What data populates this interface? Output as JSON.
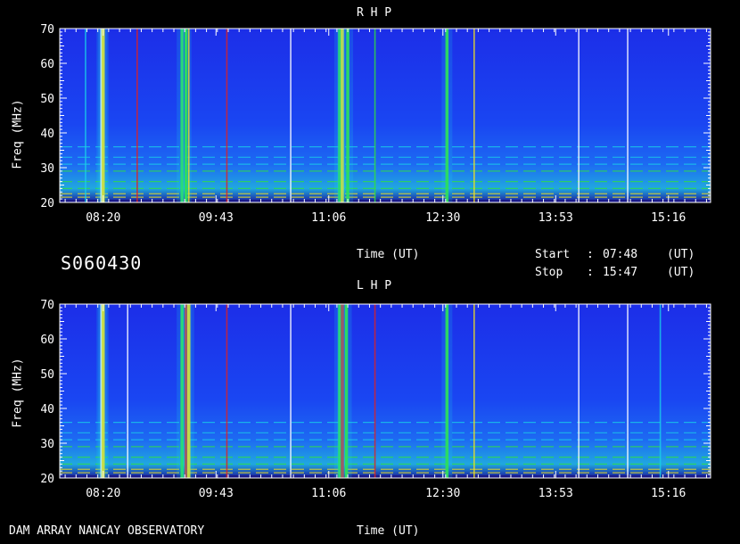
{
  "colors": {
    "background": "#000000",
    "axis": "#ffffff",
    "spectrogram_base": "#1a3cf0",
    "spectrogram_low": "#1c1c9c",
    "emission_cyan": "#19d0e8",
    "emission_green": "#30e040",
    "emission_yellow": "#f0e020",
    "emission_red": "#e02020",
    "emission_white": "#ffffff"
  },
  "observation": {
    "id": "S060430",
    "start_label": "Start",
    "start_sep": ":",
    "start_time": "07:48",
    "stop_label": "Stop",
    "stop_sep": ":",
    "stop_time": "15:47",
    "ut_start": "(UT)",
    "ut_stop": "(UT)"
  },
  "footer": {
    "instrument": "DAM ARRAY   NANCAY OBSERVATORY"
  },
  "chart_data": [
    {
      "type": "heatmap",
      "title": "R H P",
      "xlabel": "Time (UT)",
      "ylabel": "Freq (MHz)",
      "xlim": [
        "07:48",
        "15:47"
      ],
      "x_ticks": [
        "08:20",
        "09:43",
        "11:06",
        "12:30",
        "13:53",
        "15:16"
      ],
      "ylim": [
        20,
        70
      ],
      "y_ticks": [
        20,
        30,
        40,
        50,
        60,
        70
      ],
      "vertical_features": [
        {
          "time": "08:07",
          "kind": "streak",
          "color": "cyan"
        },
        {
          "time": "08:19",
          "kind": "burst",
          "color": "white"
        },
        {
          "time": "08:20",
          "kind": "burst",
          "color": "yellow"
        },
        {
          "time": "08:45",
          "kind": "streak",
          "color": "red"
        },
        {
          "time": "09:18",
          "kind": "burst",
          "color": "green"
        },
        {
          "time": "09:21",
          "kind": "burst",
          "color": "green"
        },
        {
          "time": "09:23",
          "kind": "streak",
          "color": "yellow"
        },
        {
          "time": "09:51",
          "kind": "streak",
          "color": "red"
        },
        {
          "time": "10:38",
          "kind": "streak",
          "color": "white"
        },
        {
          "time": "11:14",
          "kind": "burst",
          "color": "green"
        },
        {
          "time": "11:16",
          "kind": "burst",
          "color": "yellow"
        },
        {
          "time": "11:20",
          "kind": "burst",
          "color": "green"
        },
        {
          "time": "11:40",
          "kind": "streak",
          "color": "green"
        },
        {
          "time": "12:33",
          "kind": "burst",
          "color": "green"
        },
        {
          "time": "12:53",
          "kind": "streak",
          "color": "yellow"
        },
        {
          "time": "14:10",
          "kind": "streak",
          "color": "white"
        },
        {
          "time": "14:46",
          "kind": "streak",
          "color": "white"
        }
      ],
      "horizontal_bands_mhz": [
        20.5,
        21.5,
        22.5,
        24,
        26,
        29,
        31,
        33,
        36
      ]
    },
    {
      "type": "heatmap",
      "title": "L H P",
      "xlabel": "Time (UT)",
      "ylabel": "Freq (MHz)",
      "xlim": [
        "07:48",
        "15:47"
      ],
      "x_ticks": [
        "08:20",
        "09:43",
        "11:06",
        "12:30",
        "13:53",
        "15:16"
      ],
      "ylim": [
        20,
        70
      ],
      "y_ticks": [
        20,
        30,
        40,
        50,
        60,
        70
      ],
      "vertical_features": [
        {
          "time": "08:19",
          "kind": "burst",
          "color": "white"
        },
        {
          "time": "08:20",
          "kind": "burst",
          "color": "yellow"
        },
        {
          "time": "08:38",
          "kind": "streak",
          "color": "white"
        },
        {
          "time": "09:18",
          "kind": "burst",
          "color": "green"
        },
        {
          "time": "09:21",
          "kind": "burst",
          "color": "red"
        },
        {
          "time": "09:23",
          "kind": "burst",
          "color": "yellow"
        },
        {
          "time": "09:51",
          "kind": "streak",
          "color": "red"
        },
        {
          "time": "10:38",
          "kind": "streak",
          "color": "white"
        },
        {
          "time": "11:14",
          "kind": "burst",
          "color": "green"
        },
        {
          "time": "11:16",
          "kind": "burst",
          "color": "red"
        },
        {
          "time": "11:19",
          "kind": "burst",
          "color": "green"
        },
        {
          "time": "11:40",
          "kind": "streak",
          "color": "red"
        },
        {
          "time": "12:33",
          "kind": "burst",
          "color": "green"
        },
        {
          "time": "12:53",
          "kind": "streak",
          "color": "yellow"
        },
        {
          "time": "14:10",
          "kind": "streak",
          "color": "white"
        },
        {
          "time": "14:46",
          "kind": "streak",
          "color": "white"
        },
        {
          "time": "15:10",
          "kind": "streak",
          "color": "cyan"
        }
      ],
      "horizontal_bands_mhz": [
        20.5,
        21.5,
        22.5,
        24,
        26,
        29,
        31,
        33,
        36
      ]
    }
  ]
}
